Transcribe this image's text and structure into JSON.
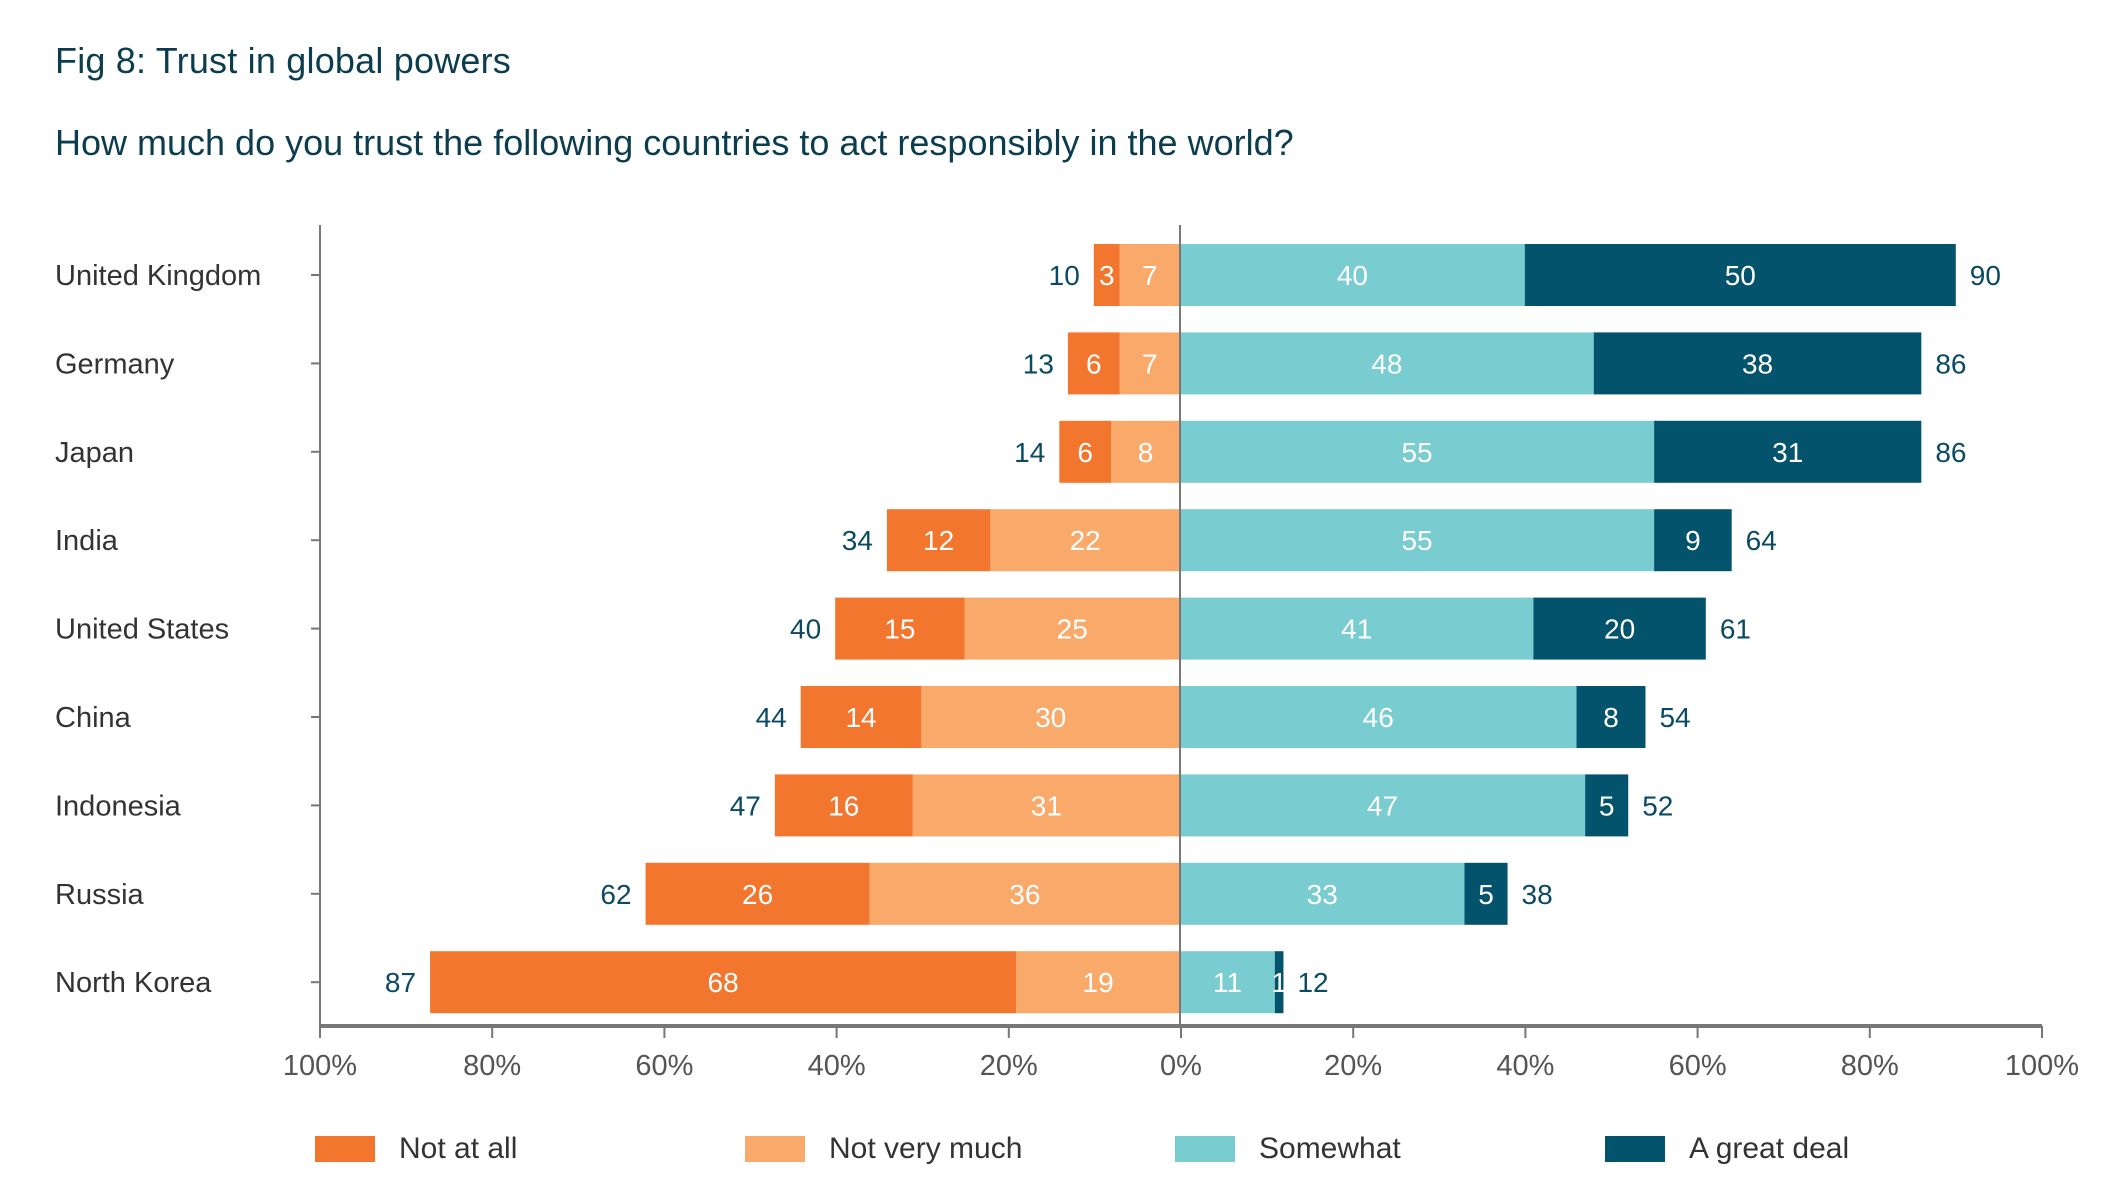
{
  "title": "Fig 8: Trust in global powers",
  "subtitle": "How much do you trust the following countries to act responsibly in the world?",
  "chart_data": {
    "type": "bar",
    "orientation": "horizontal-diverging-stacked",
    "title": "Fig 8: Trust in global powers",
    "subtitle": "How much do you trust the following countries to act responsibly in the world?",
    "xlabel": "",
    "ylabel": "",
    "xlim": [
      -100,
      100
    ],
    "x_ticks": [
      "100%",
      "80%",
      "60%",
      "40%",
      "20%",
      "0%",
      "20%",
      "40%",
      "60%",
      "80%",
      "100%"
    ],
    "grid": false,
    "legend_position": "bottom",
    "categories": [
      "United Kingdom",
      "Germany",
      "Japan",
      "India",
      "United States",
      "China",
      "Indonesia",
      "Russia",
      "North Korea"
    ],
    "series": [
      {
        "name": "Not at all",
        "side": "negative",
        "color": "#f2762e",
        "values": [
          3,
          6,
          6,
          12,
          15,
          14,
          16,
          26,
          68
        ]
      },
      {
        "name": "Not very much",
        "side": "negative",
        "color": "#f9aa6b",
        "values": [
          7,
          7,
          8,
          22,
          25,
          30,
          31,
          36,
          19
        ]
      },
      {
        "name": "Somewhat",
        "side": "positive",
        "color": "#79cdd0",
        "values": [
          40,
          48,
          55,
          55,
          41,
          46,
          47,
          33,
          11
        ]
      },
      {
        "name": "A great deal",
        "side": "positive",
        "color": "#04536d",
        "values": [
          50,
          38,
          31,
          9,
          20,
          8,
          5,
          5,
          1
        ]
      }
    ],
    "negative_totals": [
      10,
      13,
      14,
      34,
      40,
      44,
      47,
      62,
      87
    ],
    "positive_totals": [
      90,
      86,
      86,
      64,
      61,
      54,
      52,
      38,
      12
    ]
  }
}
